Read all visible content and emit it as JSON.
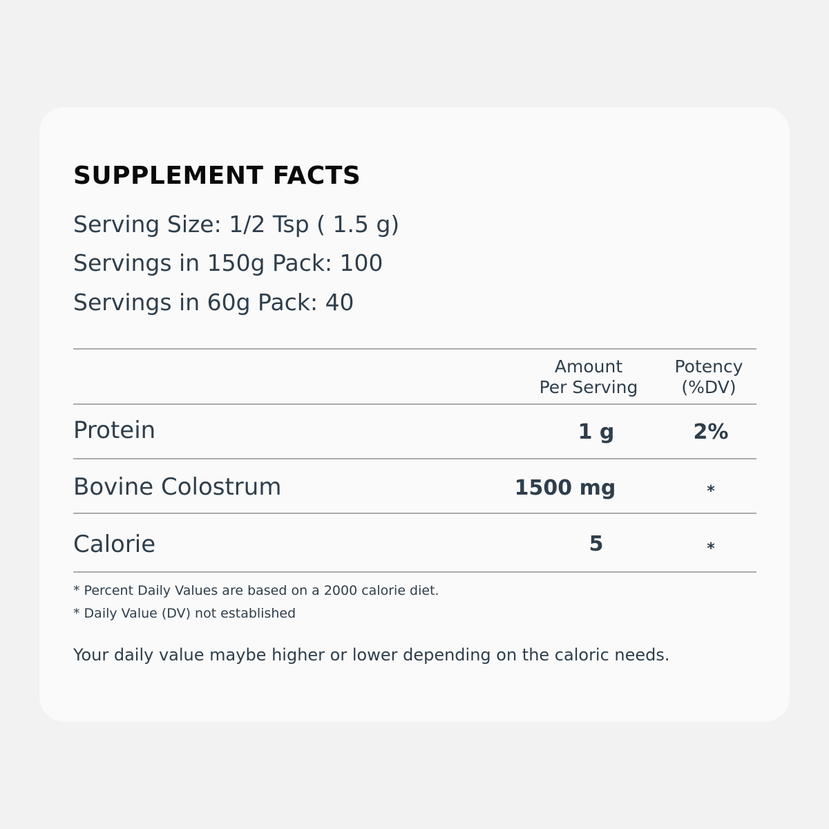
{
  "title": "SUPPLEMENT FACTS",
  "serving_info": [
    "Serving Size: 1/2 Tsp ( 1.5 g)",
    "Servings in 150g Pack: 100",
    "Servings in 60g Pack: 40"
  ],
  "table": {
    "headers": {
      "amount_line1": "Amount",
      "amount_line2": "Per Serving",
      "potency_line1": "Potency",
      "potency_line2": "(%DV)"
    },
    "rows": [
      {
        "name": "Protein",
        "amount": "1 g",
        "potency": "2%"
      },
      {
        "name": "Bovine Colostrum",
        "amount": "1500 mg",
        "potency": "*"
      },
      {
        "name": "Calorie",
        "amount": "5",
        "potency": "*"
      }
    ]
  },
  "footnotes": [
    "* Percent Daily Values are based on a 2000 calorie diet.",
    "* Daily Value (DV) not established"
  ],
  "note": "Your daily value maybe higher or lower depending on the caloric needs."
}
